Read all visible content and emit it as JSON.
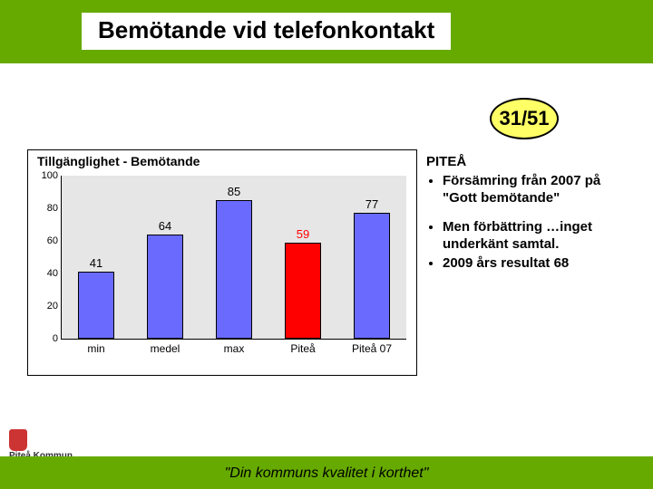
{
  "header": {
    "title": "Bemötande vid telefonkontakt",
    "bar_color": "#66aa00",
    "title_bg": "#ffffff"
  },
  "badge": {
    "text": "31/51",
    "fill": "#ffff66",
    "stroke": "#000000"
  },
  "chart": {
    "type": "bar",
    "title": "Tillgänglighet - Bemötande",
    "plot_bg": "#e6e6e6",
    "frame_border": "#000000",
    "ylim": [
      0,
      100
    ],
    "ytick_step": 20,
    "yticks": [
      0,
      20,
      40,
      60,
      80,
      100
    ],
    "categories": [
      "min",
      "medel",
      "max",
      "Piteå",
      "Piteå 07"
    ],
    "values": [
      41,
      64,
      85,
      59,
      77
    ],
    "bar_colors": [
      "#6a6aff",
      "#6a6aff",
      "#6a6aff",
      "#ff0000",
      "#6a6aff"
    ],
    "label_colors": [
      "#000000",
      "#000000",
      "#000000",
      "#ff0000",
      "#000000"
    ],
    "bar_border": "#000000",
    "cat_fontsize": 12,
    "val_fontsize": 13,
    "title_fontsize": 14
  },
  "notes": {
    "heading": "PITEÅ",
    "group1": [
      "Försämring från 2007 på \"Gott bemötande\""
    ],
    "group2": [
      "Men förbättring …inget underkänt samtal.",
      "2009 års resultat 68"
    ]
  },
  "footer": {
    "text": "\"Din kommuns kvalitet i korthet\"",
    "bar_color": "#66aa00"
  },
  "logo": {
    "text": "Piteå Kommun"
  }
}
